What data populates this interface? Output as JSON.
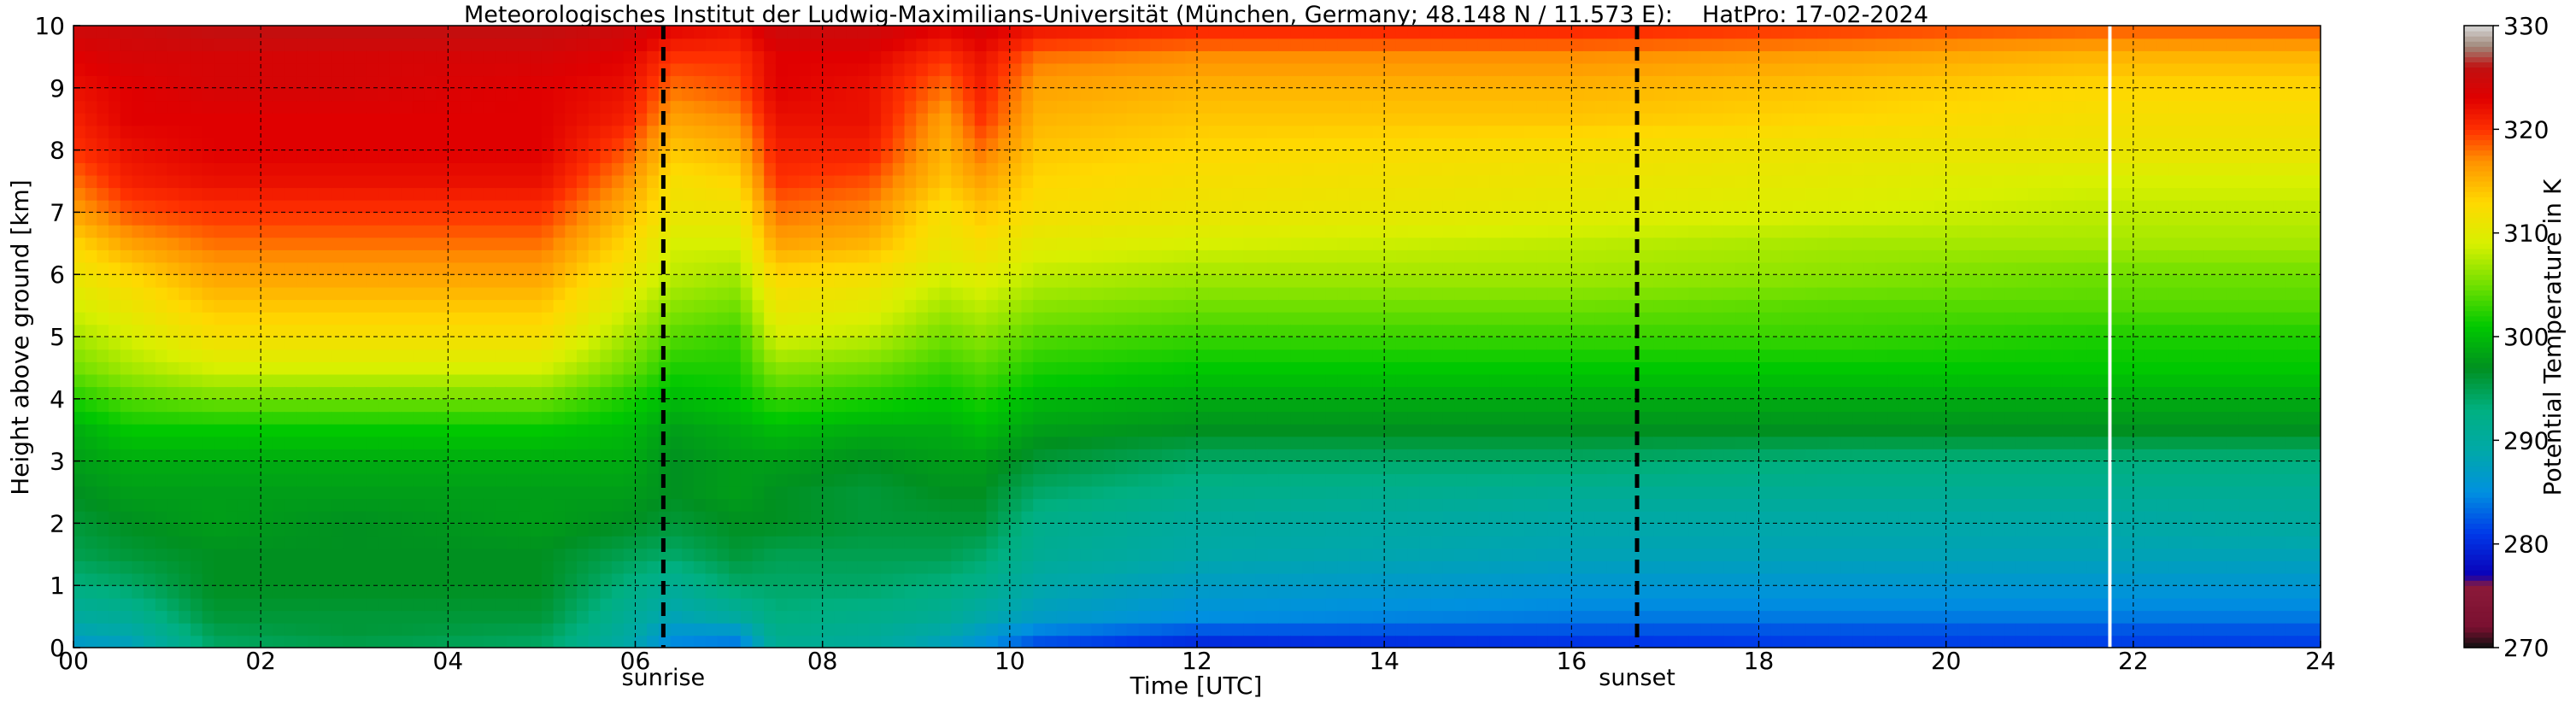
{
  "chart_data": {
    "type": "heatmap",
    "title": "Meteorologisches Institut der Ludwig-Maximilians-Universität (München, Germany; 48.148 N / 11.573 E):    HatPro: 17-02-2024",
    "xlabel": "Time [UTC]",
    "ylabel": "Height above ground [km]",
    "colorbar_label": "Potential Temperature in K",
    "xlim": [
      0,
      24
    ],
    "ylim": [
      0,
      10
    ],
    "x_ticks": [
      0,
      2,
      4,
      6,
      8,
      10,
      12,
      14,
      16,
      18,
      20,
      22,
      24
    ],
    "x_tick_labels": [
      "00",
      "02",
      "04",
      "06",
      "08",
      "10",
      "12",
      "14",
      "16",
      "18",
      "20",
      "22",
      "24"
    ],
    "y_ticks": [
      0,
      1,
      2,
      3,
      4,
      5,
      6,
      7,
      8,
      9,
      10
    ],
    "y_tick_labels": [
      "0",
      "1",
      "2",
      "3",
      "4",
      "5",
      "6",
      "7",
      "8",
      "9",
      "10"
    ],
    "colorbar_range": [
      270,
      330
    ],
    "colorbar_ticks": [
      270,
      280,
      290,
      300,
      310,
      320,
      330
    ],
    "colorbar_tick_labels": [
      "270",
      "280",
      "290",
      "300",
      "310",
      "320",
      "330"
    ],
    "grid": true,
    "markers": [
      {
        "label": "sunrise",
        "x": 6.3
      },
      {
        "label": "sunset",
        "x": 16.7
      }
    ],
    "data_gap_x": 21.75,
    "colormap": [
      {
        "value": 270,
        "color": "#101010"
      },
      {
        "value": 272,
        "color": "#7a1030"
      },
      {
        "value": 276,
        "color": "#8b1a3a"
      },
      {
        "value": 277,
        "color": "#0a00b8"
      },
      {
        "value": 281,
        "color": "#0038e8"
      },
      {
        "value": 285,
        "color": "#0090e0"
      },
      {
        "value": 289,
        "color": "#00a8a8"
      },
      {
        "value": 293,
        "color": "#00b080"
      },
      {
        "value": 297,
        "color": "#009020"
      },
      {
        "value": 301,
        "color": "#00c800"
      },
      {
        "value": 305,
        "color": "#70e000"
      },
      {
        "value": 309,
        "color": "#d8f000"
      },
      {
        "value": 313,
        "color": "#ffd800"
      },
      {
        "value": 317,
        "color": "#ff9000"
      },
      {
        "value": 320,
        "color": "#ff3000"
      },
      {
        "value": 323,
        "color": "#e00000"
      },
      {
        "value": 326,
        "color": "#c01010"
      },
      {
        "value": 328,
        "color": "#a0887a"
      },
      {
        "value": 330,
        "color": "#d8d8d8"
      }
    ],
    "profiles": {
      "heights_km": [
        0,
        0.25,
        0.5,
        1,
        1.5,
        2,
        2.5,
        3,
        3.5,
        4,
        4.5,
        5,
        5.5,
        6,
        6.5,
        7,
        7.5,
        8,
        8.5,
        9,
        9.5,
        10
      ],
      "columns": [
        {
          "time": 0.0,
          "theta": [
            286,
            288,
            290,
            293,
            295,
            296,
            297,
            298,
            299,
            302,
            305,
            307,
            309,
            311,
            313,
            316,
            318,
            320,
            321,
            322,
            323,
            325
          ]
        },
        {
          "time": 0.6,
          "theta": [
            287,
            289,
            291,
            294,
            296,
            297,
            298,
            299,
            301,
            304,
            307,
            309,
            311,
            313,
            316,
            319,
            321,
            322,
            323,
            323,
            324,
            325
          ]
        },
        {
          "time": 1.5,
          "theta": [
            294,
            295,
            296,
            297,
            297,
            298,
            298,
            299,
            301,
            305,
            309,
            312,
            314,
            316,
            318,
            320,
            322,
            323,
            323,
            324,
            324,
            326
          ]
        },
        {
          "time": 3.0,
          "theta": [
            295,
            296,
            296,
            297,
            297,
            297,
            298,
            299,
            301,
            305,
            309,
            312,
            314,
            316,
            318,
            320,
            322,
            323,
            323,
            324,
            324,
            326
          ]
        },
        {
          "time": 5.0,
          "theta": [
            294,
            295,
            296,
            297,
            297,
            298,
            298,
            299,
            301,
            305,
            309,
            312,
            314,
            316,
            318,
            320,
            322,
            323,
            323,
            323,
            324,
            326
          ]
        },
        {
          "time": 5.9,
          "theta": [
            289,
            290,
            291,
            293,
            295,
            297,
            298,
            299,
            300,
            302,
            305,
            307,
            309,
            311,
            313,
            315,
            317,
            319,
            321,
            322,
            323,
            325
          ]
        },
        {
          "time": 6.4,
          "theta": [
            284,
            286,
            288,
            291,
            294,
            296,
            297,
            297,
            298,
            300,
            302,
            304,
            306,
            308,
            309,
            311,
            312,
            314,
            316,
            318,
            320,
            323
          ]
        },
        {
          "time": 7.1,
          "theta": [
            283,
            286,
            290,
            294,
            296,
            297,
            298,
            298,
            299,
            301,
            302,
            303,
            305,
            307,
            309,
            311,
            313,
            315,
            317,
            319,
            320,
            322
          ]
        },
        {
          "time": 7.5,
          "theta": [
            291,
            292,
            293,
            294,
            295,
            297,
            297,
            298,
            300,
            303,
            306,
            309,
            311,
            313,
            316,
            318,
            320,
            321,
            322,
            323,
            323,
            325
          ]
        },
        {
          "time": 8.5,
          "theta": [
            290,
            291,
            292,
            294,
            295,
            296,
            296,
            297,
            299,
            302,
            305,
            308,
            310,
            312,
            315,
            317,
            319,
            321,
            322,
            322,
            323,
            325
          ]
        },
        {
          "time": 9.3,
          "theta": [
            287,
            289,
            291,
            293,
            295,
            296,
            297,
            298,
            299,
            301,
            303,
            305,
            307,
            309,
            311,
            312,
            314,
            315,
            316,
            318,
            320,
            323
          ]
        },
        {
          "time": 9.7,
          "theta": [
            285,
            287,
            289,
            292,
            294,
            296,
            297,
            298,
            300,
            302,
            304,
            306,
            308,
            310,
            312,
            314,
            316,
            318,
            320,
            321,
            322,
            324
          ]
        },
        {
          "time": 10.3,
          "theta": [
            281,
            284,
            287,
            289,
            291,
            292,
            294,
            296,
            298,
            300,
            302,
            304,
            306,
            308,
            310,
            312,
            313,
            314,
            315,
            316,
            318,
            322
          ]
        },
        {
          "time": 12.0,
          "theta": [
            279,
            282,
            285,
            287,
            289,
            290,
            292,
            294,
            297,
            299,
            301,
            303,
            305,
            307,
            309,
            311,
            312,
            313,
            314,
            315,
            317,
            321
          ]
        },
        {
          "time": 16.0,
          "theta": [
            280,
            282,
            284,
            286,
            288,
            289,
            291,
            294,
            297,
            299,
            301,
            303,
            305,
            307,
            308,
            310,
            311,
            312,
            314,
            315,
            317,
            321
          ]
        },
        {
          "time": 19.0,
          "theta": [
            281,
            282,
            284,
            286,
            288,
            289,
            291,
            293,
            297,
            299,
            301,
            303,
            304,
            306,
            307,
            309,
            310,
            311,
            313,
            314,
            316,
            320
          ]
        },
        {
          "time": 21.5,
          "theta": [
            281,
            282,
            284,
            286,
            288,
            289,
            291,
            293,
            297,
            299,
            301,
            302,
            304,
            305,
            307,
            308,
            309,
            311,
            312,
            313,
            315,
            319
          ]
        },
        {
          "time": 24.0,
          "theta": [
            281,
            282,
            284,
            286,
            288,
            290,
            291,
            293,
            297,
            299,
            301,
            302,
            304,
            305,
            307,
            308,
            309,
            311,
            312,
            313,
            315,
            319
          ]
        }
      ]
    }
  }
}
